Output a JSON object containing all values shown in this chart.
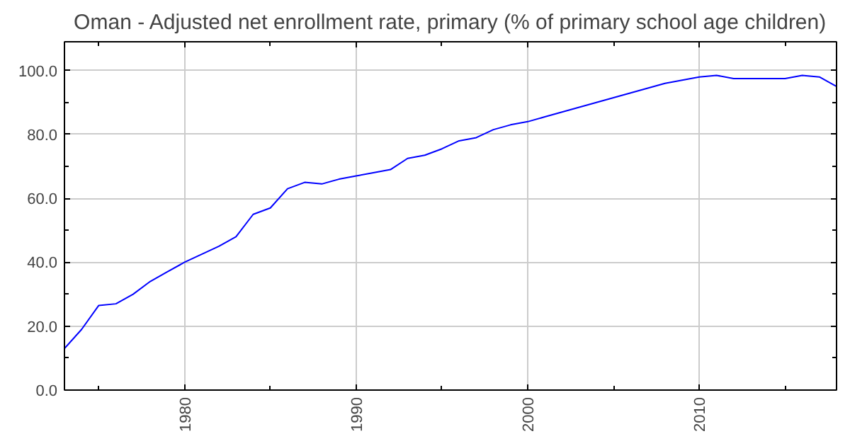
{
  "chart_data": {
    "type": "line",
    "title": "Oman - Adjusted net enrollment rate, primary (% of primary school age children)",
    "x": [
      1973,
      1974,
      1975,
      1976,
      1977,
      1978,
      1979,
      1980,
      1981,
      1982,
      1983,
      1984,
      1985,
      1986,
      1987,
      1988,
      1989,
      1990,
      1991,
      1992,
      1993,
      1994,
      1995,
      1996,
      1997,
      1998,
      1999,
      2000,
      2001,
      2002,
      2003,
      2004,
      2005,
      2006,
      2007,
      2008,
      2009,
      2010,
      2011,
      2012,
      2013,
      2014,
      2015,
      2016,
      2017,
      2018
    ],
    "series": [
      {
        "color": "#0000ff",
        "values": [
          13,
          19,
          26.5,
          27,
          30,
          34,
          37,
          40,
          42.5,
          45,
          48,
          55,
          57,
          63,
          65,
          64.5,
          66,
          67,
          68,
          69,
          72.5,
          73.5,
          75.5,
          78,
          79,
          81.5,
          83,
          84,
          85.5,
          87,
          88.5,
          90,
          91.5,
          93,
          94.5,
          96,
          97,
          98,
          98.5,
          97.5,
          97.5,
          97.5,
          97.5,
          98.5,
          98,
          95
        ]
      }
    ],
    "xlim": [
      1973,
      2018
    ],
    "ylim": [
      0,
      109
    ],
    "xticks": [
      1980,
      1990,
      2000,
      2010
    ],
    "yticks": [
      {
        "value": 0,
        "label": "0.0"
      },
      {
        "value": 20,
        "label": "20.0"
      },
      {
        "value": 40,
        "label": "40.0"
      },
      {
        "value": 60,
        "label": "60.0"
      },
      {
        "value": 80,
        "label": "80.0"
      },
      {
        "value": 100,
        "label": "100.0"
      }
    ],
    "grid": true,
    "marker": "none",
    "line_style": "solid"
  }
}
